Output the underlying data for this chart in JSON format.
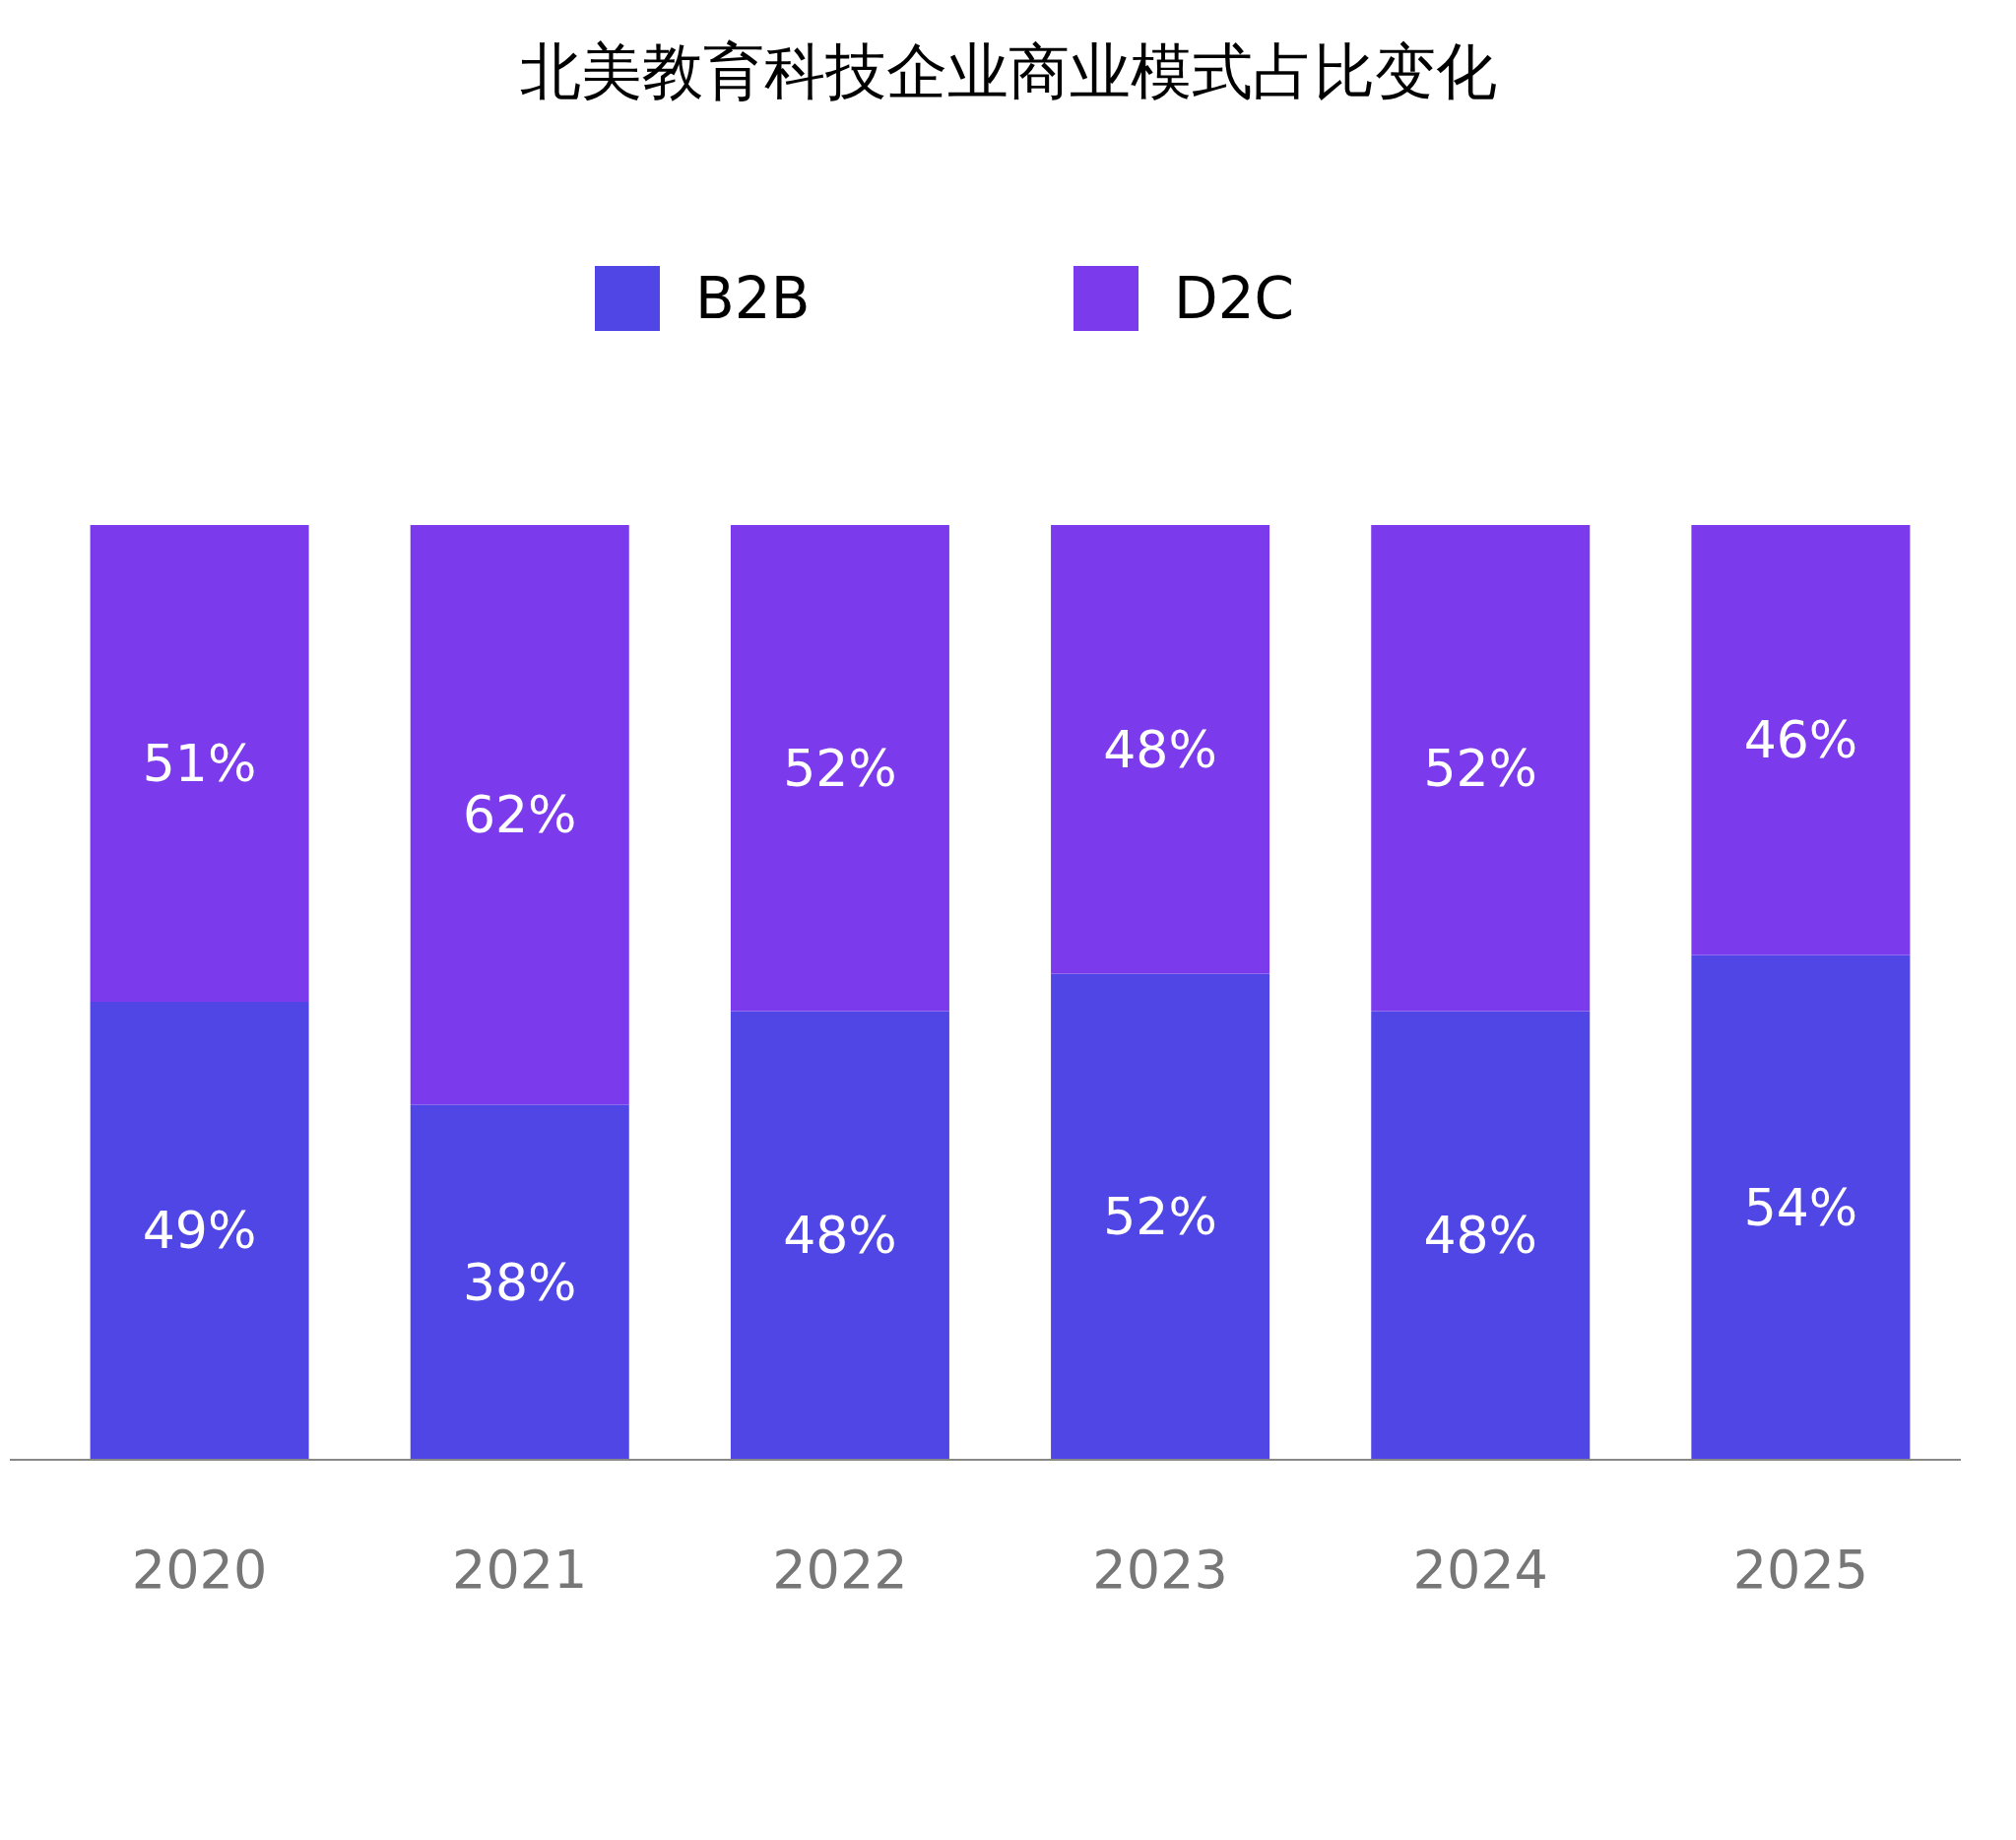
{
  "chart_data": {
    "type": "bar",
    "title": "北美教育科技企业商业模式占比变化",
    "categories": [
      "2020",
      "2021",
      "2022",
      "2023",
      "2024",
      "2025"
    ],
    "stacked": true,
    "legend": "top",
    "series": [
      {
        "name": "B2B",
        "color": "#4f46e5",
        "values": [
          49,
          38,
          48,
          52,
          48,
          54
        ],
        "value_labels": [
          "49%",
          "38%",
          "48%",
          "52%",
          "48%",
          "54%"
        ]
      },
      {
        "name": "D2C",
        "color": "#7c3aed",
        "values": [
          51,
          62,
          52,
          48,
          52,
          46
        ],
        "value_labels": [
          "51%",
          "62%",
          "52%",
          "48%",
          "52%",
          "46%"
        ]
      }
    ]
  }
}
